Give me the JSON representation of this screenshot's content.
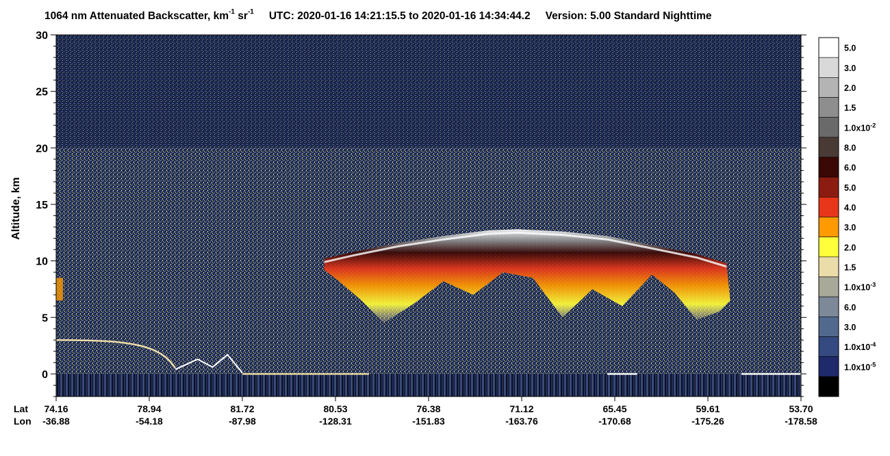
{
  "title": {
    "product_prefix": "1064 nm Attenuated Backscatter, km",
    "unit_exp1": "-1",
    "unit_mid": " sr",
    "unit_exp2": "-1",
    "utc_label": "UTC:",
    "start_time": "2020-01-16 14:21:15.5",
    "to_word": "to",
    "end_time": "2020-01-16 14:34:44.2",
    "version": "Version: 5.00",
    "product_level": "Standard",
    "day_night": "Nighttime"
  },
  "chart_data": {
    "type": "heatmap",
    "title": "1064 nm Attenuated Backscatter, km-1 sr-1",
    "ylabel": "Altitude, km",
    "ylim": [
      -2,
      30
    ],
    "yticks": [
      0,
      5,
      10,
      15,
      20,
      25,
      30
    ],
    "x_axis_rows": [
      {
        "label": "Lat",
        "values": [
          "74.16",
          "78.94",
          "81.72",
          "80.53",
          "76.38",
          "71.12",
          "65.45",
          "59.61",
          "53.70"
        ]
      },
      {
        "label": "Lon",
        "values": [
          "-36.88",
          "-54.18",
          "-87.98",
          "-128.31",
          "-151.83",
          "-163.76",
          "-170.68",
          "-175.26",
          "-178.58"
        ]
      }
    ],
    "colorbar": [
      {
        "label": "5.0",
        "color": "#ffffff"
      },
      {
        "label": "3.0",
        "color": "#d9d9d9"
      },
      {
        "label": "2.0",
        "color": "#b4b4b4"
      },
      {
        "label": "1.5",
        "color": "#8e8e8e"
      },
      {
        "label": "1.0x10",
        "exp": "-2",
        "color": "#6a6a6a"
      },
      {
        "label": "8.0",
        "color": "#4a3a36"
      },
      {
        "label": "6.0",
        "color": "#3a0805"
      },
      {
        "label": "5.0",
        "color": "#8c1c12"
      },
      {
        "label": "4.0",
        "color": "#e8361a"
      },
      {
        "label": "3.0",
        "color": "#ff9a00"
      },
      {
        "label": "2.0",
        "color": "#ffff3a"
      },
      {
        "label": "1.5",
        "color": "#ecdcaa"
      },
      {
        "label": "1.0x10",
        "exp": "-3",
        "color": "#a9a99a"
      },
      {
        "label": "6.0",
        "color": "#7d8898"
      },
      {
        "label": "3.0",
        "color": "#52698e"
      },
      {
        "label": "1.0x10",
        "exp": "-4",
        "color": "#344a80"
      },
      {
        "label": "1.0x10",
        "exp": "-5",
        "color": "#1f2a6a"
      },
      {
        "label": "",
        "color": "#000000"
      }
    ],
    "features": {
      "clear_air_above_20km": "dark blue/grey noise",
      "cirrus_cloud_lat_range": [
        "80.53",
        "59.61"
      ],
      "cirrus_top_km": 12.8,
      "cirrus_base_km": 4.5,
      "surface_return_km": 0,
      "elevated_surface_left_km": 3
    }
  }
}
